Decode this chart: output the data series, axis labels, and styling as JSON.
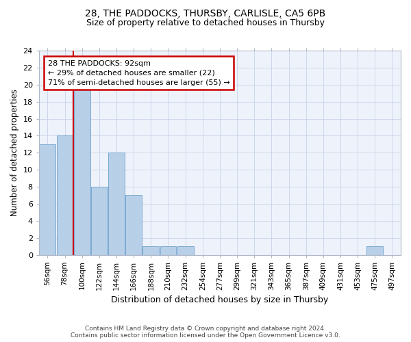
{
  "title1": "28, THE PADDOCKS, THURSBY, CARLISLE, CA5 6PB",
  "title2": "Size of property relative to detached houses in Thursby",
  "xlabel": "Distribution of detached houses by size in Thursby",
  "ylabel": "Number of detached properties",
  "categories": [
    "56sqm",
    "78sqm",
    "100sqm",
    "122sqm",
    "144sqm",
    "166sqm",
    "188sqm",
    "210sqm",
    "232sqm",
    "254sqm",
    "277sqm",
    "299sqm",
    "321sqm",
    "343sqm",
    "365sqm",
    "387sqm",
    "409sqm",
    "431sqm",
    "453sqm",
    "475sqm",
    "497sqm"
  ],
  "values": [
    13,
    14,
    20,
    8,
    12,
    7,
    1,
    1,
    1,
    0,
    0,
    0,
    0,
    0,
    0,
    0,
    0,
    0,
    0,
    1,
    0
  ],
  "bar_color": "#b8cfe8",
  "bar_edge_color": "#7aaad0",
  "ylim": [
    0,
    24
  ],
  "yticks": [
    0,
    2,
    4,
    6,
    8,
    10,
    12,
    14,
    16,
    18,
    20,
    22,
    24
  ],
  "annotation_line1": "28 THE PADDOCKS: 92sqm",
  "annotation_line2": "← 29% of detached houses are smaller (22)",
  "annotation_line3": "71% of semi-detached houses are larger (55) →",
  "annotation_box_color": "#ffffff",
  "annotation_box_edge": "#cc0000",
  "red_line_color": "#cc0000",
  "background_color": "#eef2fb",
  "footer1": "Contains HM Land Registry data © Crown copyright and database right 2024.",
  "footer2": "Contains public sector information licensed under the Open Government Licence v3.0."
}
